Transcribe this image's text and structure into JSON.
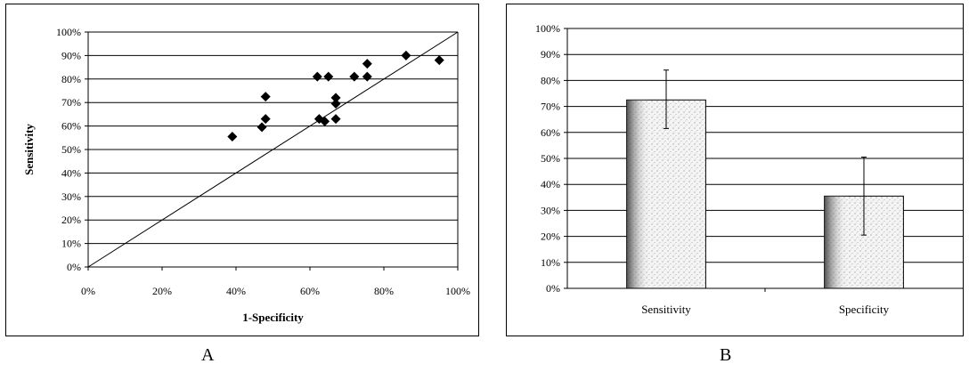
{
  "panel_labels": {
    "a": "A",
    "b": "B"
  },
  "chart_data": [
    {
      "type": "scatter",
      "panel": "A",
      "title": "",
      "xlabel": "1-Specificity",
      "ylabel": "Sensitivity",
      "xlim": [
        0,
        100
      ],
      "ylim": [
        0,
        100
      ],
      "x_ticks": [
        "0%",
        "20%",
        "40%",
        "60%",
        "80%",
        "100%"
      ],
      "y_ticks": [
        "0%",
        "10%",
        "20%",
        "30%",
        "40%",
        "50%",
        "60%",
        "70%",
        "80%",
        "90%",
        "100%"
      ],
      "grid": "horizontal",
      "reference_line": {
        "from": [
          0,
          0
        ],
        "to": [
          100,
          100
        ]
      },
      "marker": "diamond",
      "marker_color": "#000000",
      "points": [
        {
          "x": 39,
          "y": 55.5
        },
        {
          "x": 47,
          "y": 59.5
        },
        {
          "x": 48,
          "y": 63
        },
        {
          "x": 48,
          "y": 72.5
        },
        {
          "x": 62,
          "y": 81
        },
        {
          "x": 62.5,
          "y": 63
        },
        {
          "x": 64,
          "y": 62
        },
        {
          "x": 65,
          "y": 81
        },
        {
          "x": 67,
          "y": 72
        },
        {
          "x": 67,
          "y": 69.5
        },
        {
          "x": 67,
          "y": 63
        },
        {
          "x": 72,
          "y": 81
        },
        {
          "x": 75.5,
          "y": 81
        },
        {
          "x": 75.5,
          "y": 86.5
        },
        {
          "x": 86,
          "y": 90
        },
        {
          "x": 95,
          "y": 88
        }
      ]
    },
    {
      "type": "bar",
      "panel": "B",
      "title": "",
      "xlabel": "",
      "ylabel": "",
      "ylim": [
        0,
        100
      ],
      "y_ticks": [
        "0%",
        "10%",
        "20%",
        "30%",
        "40%",
        "50%",
        "60%",
        "70%",
        "80%",
        "90%",
        "100%"
      ],
      "grid": "horizontal",
      "categories": [
        "Sensitivity",
        "Specificity"
      ],
      "values": [
        72.5,
        35.5
      ],
      "error_low": [
        61.5,
        20.5
      ],
      "error_high": [
        84,
        50.5
      ],
      "bar_color": "#d9d9d9",
      "bar_fill": "stippled"
    }
  ]
}
